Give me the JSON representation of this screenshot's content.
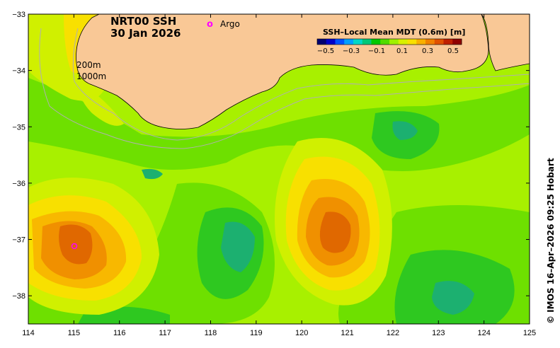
{
  "map": {
    "title_line1": "NRT00 SSH",
    "title_line2": "30 Jan 2026",
    "argo_marker": "o",
    "argo_label": "Argo",
    "contour_label_200": "200m",
    "contour_label_1000": "1000m",
    "land_color": "#f9c896",
    "argo_color": "#ff00ff"
  },
  "colorbar": {
    "title": "SSH–Local Mean MDT (0.6m) [m]",
    "ticks": [
      "−0.5",
      "−0.3",
      "−0.1",
      "0.1",
      "0.3",
      "0.5"
    ],
    "colors": [
      "#000070",
      "#0000c8",
      "#0050ff",
      "#00a0ff",
      "#00d8c8",
      "#00c878",
      "#00c800",
      "#50dc00",
      "#a0f000",
      "#d8f000",
      "#f8e000",
      "#f8b000",
      "#f08000",
      "#e05000",
      "#c02000",
      "#900000"
    ]
  },
  "axes": {
    "x_ticks": [
      "114",
      "115",
      "116",
      "117",
      "118",
      "119",
      "120",
      "121",
      "122",
      "123",
      "124",
      "125"
    ],
    "y_ticks": [
      "−33",
      "−34",
      "−35",
      "−36",
      "−37",
      "−38"
    ],
    "lon_range": [
      114,
      125
    ],
    "lat_range": [
      -38.5,
      -33
    ]
  },
  "credit": "© IMOS 16–Apr–2026 09:25 Hobart"
}
